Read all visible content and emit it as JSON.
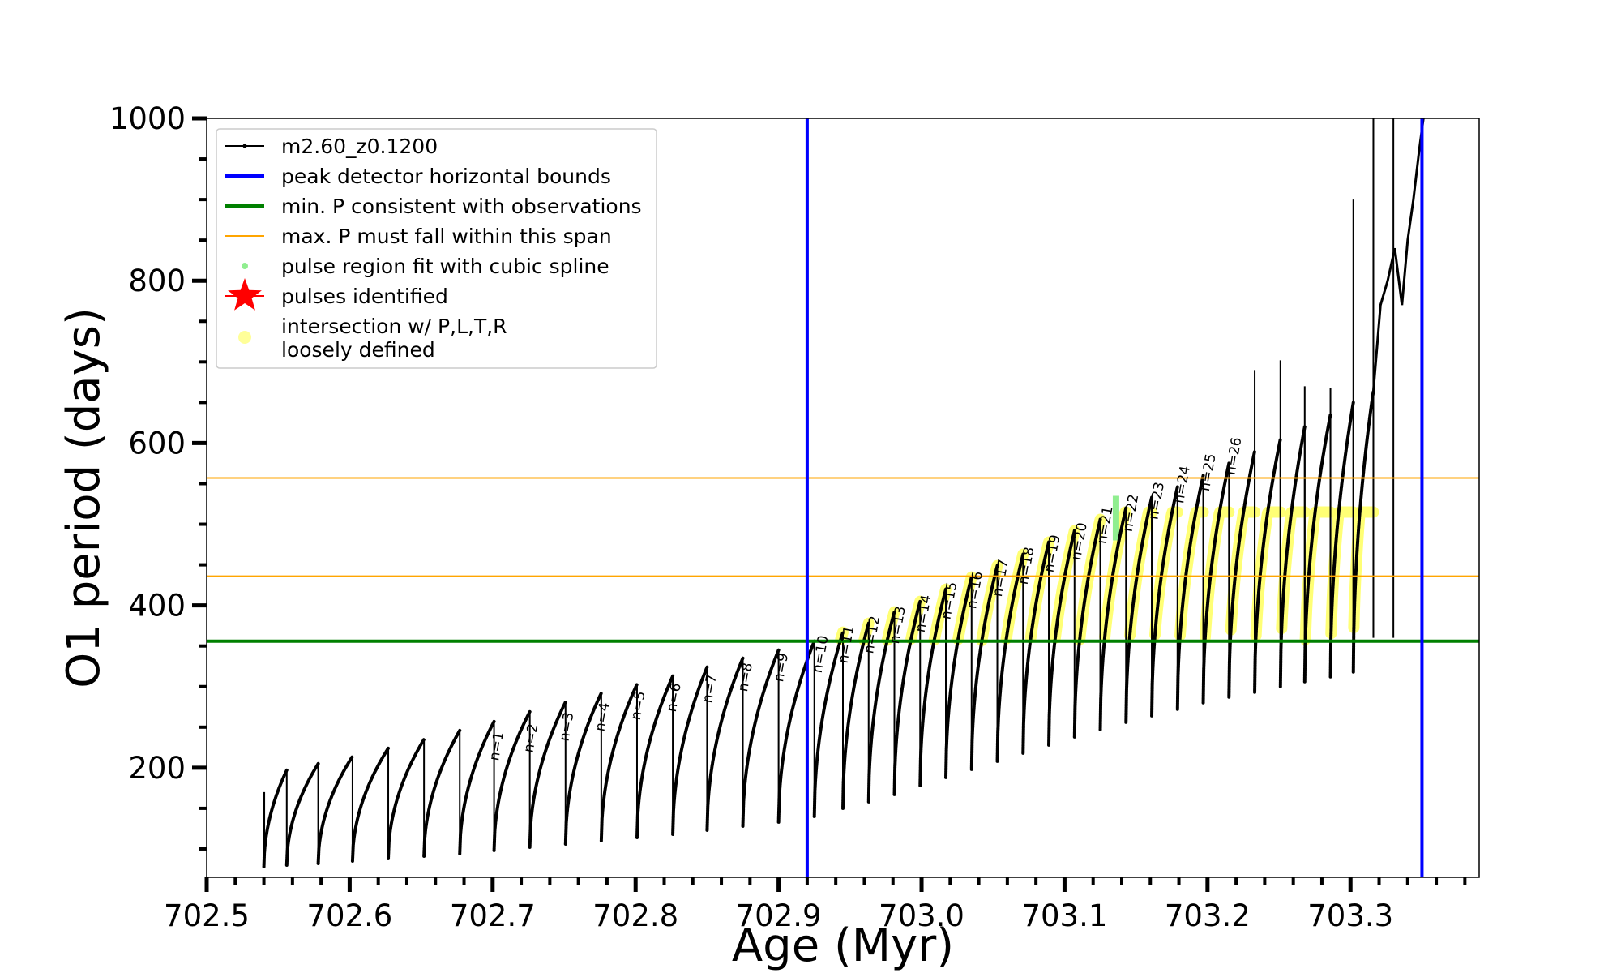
{
  "chart_data": {
    "type": "line",
    "title": "",
    "xlabel": "Age (Myr)",
    "ylabel": "O1 period (days)",
    "xlim": [
      702.5,
      703.39
    ],
    "ylim": [
      65,
      1000
    ],
    "x_ticks": [
      702.5,
      702.6,
      702.7,
      702.8,
      702.9,
      703.0,
      703.1,
      703.2,
      703.3
    ],
    "x_tick_labels": [
      "702.5",
      "702.6",
      "702.7",
      "702.8",
      "702.9",
      "703.0",
      "703.1",
      "703.2",
      "703.3"
    ],
    "y_ticks": [
      200,
      400,
      600,
      800,
      1000
    ],
    "y_tick_labels": [
      "200",
      "400",
      "600",
      "800",
      "1000"
    ],
    "grid": false,
    "legend_position": "top-left",
    "legend": [
      {
        "label": "m2.60_z0.1200",
        "marker": "line-dot",
        "color": "#000000"
      },
      {
        "label": "peak detector horizontal bounds",
        "marker": "line",
        "color": "#0000ff"
      },
      {
        "label": "min. P consistent with observations",
        "marker": "line",
        "color": "#008000"
      },
      {
        "label": "max. P must fall within this span",
        "marker": "thin-line",
        "color": "#ffa500"
      },
      {
        "label": "pulse region fit with cubic spline",
        "marker": "dot",
        "color": "#90ee90"
      },
      {
        "label": "pulses identified",
        "marker": "star",
        "color": "#ff0000"
      },
      {
        "label": "intersection w/ P,L,T,R\nloosely defined",
        "marker": "circle",
        "color": "#ffff99"
      }
    ],
    "reference_lines": {
      "vertical_blue_x": [
        702.92,
        703.35
      ],
      "horizontal_green_y": 356,
      "horizontal_orange_y": [
        436,
        557
      ]
    },
    "series": [
      {
        "name": "m2.60_z0.1200",
        "color": "#000000",
        "pulses": [
          {
            "x0": 702.54,
            "x1": 702.556,
            "pmin": 78,
            "pmax": 197
          },
          {
            "x0": 702.556,
            "x1": 702.578,
            "pmin": 80,
            "pmax": 205
          },
          {
            "x0": 702.578,
            "x1": 702.602,
            "pmin": 82,
            "pmax": 214
          },
          {
            "x0": 702.602,
            "x1": 702.627,
            "pmin": 85,
            "pmax": 224
          },
          {
            "x0": 702.627,
            "x1": 702.652,
            "pmin": 88,
            "pmax": 235
          },
          {
            "x0": 702.652,
            "x1": 702.677,
            "pmin": 91,
            "pmax": 246
          },
          {
            "x0": 702.677,
            "x1": 702.701,
            "pmin": 94,
            "pmax": 257
          },
          {
            "x0": 702.701,
            "x1": 702.726,
            "pmin": 98,
            "pmax": 269
          },
          {
            "x0": 702.726,
            "x1": 702.751,
            "pmin": 102,
            "pmax": 281
          },
          {
            "x0": 702.751,
            "x1": 702.776,
            "pmin": 106,
            "pmax": 292
          },
          {
            "x0": 702.776,
            "x1": 702.801,
            "pmin": 110,
            "pmax": 303
          },
          {
            "x0": 702.801,
            "x1": 702.826,
            "pmin": 114,
            "pmax": 313
          },
          {
            "x0": 702.826,
            "x1": 702.85,
            "pmin": 118,
            "pmax": 324
          },
          {
            "x0": 702.85,
            "x1": 702.875,
            "pmin": 123,
            "pmax": 335
          },
          {
            "x0": 702.875,
            "x1": 702.9,
            "pmin": 128,
            "pmax": 345
          },
          {
            "x0": 702.9,
            "x1": 702.925,
            "pmin": 133,
            "pmax": 356
          },
          {
            "x0": 702.925,
            "x1": 702.945,
            "pmin": 140,
            "pmax": 367
          },
          {
            "x0": 702.945,
            "x1": 702.963,
            "pmin": 150,
            "pmax": 378
          },
          {
            "x0": 702.963,
            "x1": 702.981,
            "pmin": 158,
            "pmax": 392
          },
          {
            "x0": 702.981,
            "x1": 702.999,
            "pmin": 167,
            "pmax": 405
          },
          {
            "x0": 702.999,
            "x1": 703.017,
            "pmin": 178,
            "pmax": 420
          },
          {
            "x0": 703.017,
            "x1": 703.035,
            "pmin": 188,
            "pmax": 435
          },
          {
            "x0": 703.035,
            "x1": 703.053,
            "pmin": 198,
            "pmax": 449
          },
          {
            "x0": 703.053,
            "x1": 703.071,
            "pmin": 208,
            "pmax": 463
          },
          {
            "x0": 703.071,
            "x1": 703.089,
            "pmin": 218,
            "pmax": 478
          },
          {
            "x0": 703.089,
            "x1": 703.107,
            "pmin": 228,
            "pmax": 492
          },
          {
            "x0": 703.107,
            "x1": 703.125,
            "pmin": 238,
            "pmax": 506
          },
          {
            "x0": 703.125,
            "x1": 703.143,
            "pmin": 247,
            "pmax": 520
          },
          {
            "x0": 703.143,
            "x1": 703.161,
            "pmin": 256,
            "pmax": 533
          },
          {
            "x0": 703.161,
            "x1": 703.179,
            "pmin": 264,
            "pmax": 546
          },
          {
            "x0": 703.179,
            "x1": 703.197,
            "pmin": 272,
            "pmax": 560
          },
          {
            "x0": 703.197,
            "x1": 703.215,
            "pmin": 280,
            "pmax": 575
          },
          {
            "x0": 703.215,
            "x1": 703.233,
            "pmin": 287,
            "pmax": 590
          },
          {
            "x0": 703.233,
            "x1": 703.251,
            "pmin": 293,
            "pmax": 605
          },
          {
            "x0": 703.251,
            "x1": 703.268,
            "pmin": 300,
            "pmax": 620
          },
          {
            "x0": 703.268,
            "x1": 703.286,
            "pmin": 306,
            "pmax": 635
          },
          {
            "x0": 703.286,
            "x1": 703.302,
            "pmin": 312,
            "pmax": 650
          },
          {
            "x0": 703.302,
            "x1": 703.316,
            "pmin": 318,
            "pmax": 664
          }
        ],
        "tail": [
          [
            703.321,
            770
          ],
          [
            703.326,
            800
          ],
          [
            703.331,
            840
          ],
          [
            703.336,
            770
          ],
          [
            703.34,
            850
          ],
          [
            703.344,
            900
          ],
          [
            703.348,
            960
          ],
          [
            703.351,
            1000
          ]
        ],
        "spikes": [
          {
            "x": 703.233,
            "top": 690
          },
          {
            "x": 703.251,
            "top": 702
          },
          {
            "x": 703.268,
            "top": 670
          },
          {
            "x": 703.286,
            "top": 668
          },
          {
            "x": 703.302,
            "top": 900
          },
          {
            "x": 703.316,
            "top": 1000
          },
          {
            "x": 703.33,
            "top": 1000
          }
        ]
      }
    ],
    "highlight_region": {
      "name": "intersection w/ P,L,T,R loosely defined",
      "color": "#ffff66",
      "x_range": [
        702.917,
        703.35
      ],
      "y_floor": 356,
      "y_cap": 515
    },
    "spline_fit_segment": {
      "x": 703.136,
      "y_range": [
        480,
        535
      ],
      "color": "#90ee90"
    },
    "pulse_labels": [
      {
        "text": "n=1",
        "x": 702.704,
        "y": 208
      },
      {
        "text": "n=2",
        "x": 702.728,
        "y": 218
      },
      {
        "text": "n=3",
        "x": 702.753,
        "y": 232
      },
      {
        "text": "n=4",
        "x": 702.778,
        "y": 244
      },
      {
        "text": "n=5",
        "x": 702.803,
        "y": 258
      },
      {
        "text": "n=6",
        "x": 702.828,
        "y": 268
      },
      {
        "text": "n=7",
        "x": 702.853,
        "y": 279
      },
      {
        "text": "n=8",
        "x": 702.878,
        "y": 293
      },
      {
        "text": "n=9",
        "x": 702.903,
        "y": 305
      },
      {
        "text": "n=10",
        "x": 702.93,
        "y": 316
      },
      {
        "text": "n=11",
        "x": 702.948,
        "y": 328
      },
      {
        "text": "n=12",
        "x": 702.966,
        "y": 340
      },
      {
        "text": "n=13",
        "x": 702.984,
        "y": 352
      },
      {
        "text": "n=14",
        "x": 703.002,
        "y": 366
      },
      {
        "text": "n=15",
        "x": 703.02,
        "y": 382
      },
      {
        "text": "n=16",
        "x": 703.038,
        "y": 395
      },
      {
        "text": "n=17",
        "x": 703.056,
        "y": 410
      },
      {
        "text": "n=18",
        "x": 703.074,
        "y": 425
      },
      {
        "text": "n=19",
        "x": 703.092,
        "y": 440
      },
      {
        "text": "n=20",
        "x": 703.111,
        "y": 455
      },
      {
        "text": "n=21",
        "x": 703.129,
        "y": 475
      },
      {
        "text": "n=22",
        "x": 703.147,
        "y": 490
      },
      {
        "text": "n=23",
        "x": 703.165,
        "y": 505
      },
      {
        "text": "n=24",
        "x": 703.183,
        "y": 525
      },
      {
        "text": "n=25",
        "x": 703.201,
        "y": 540
      },
      {
        "text": "n=26",
        "x": 703.219,
        "y": 560
      }
    ]
  }
}
